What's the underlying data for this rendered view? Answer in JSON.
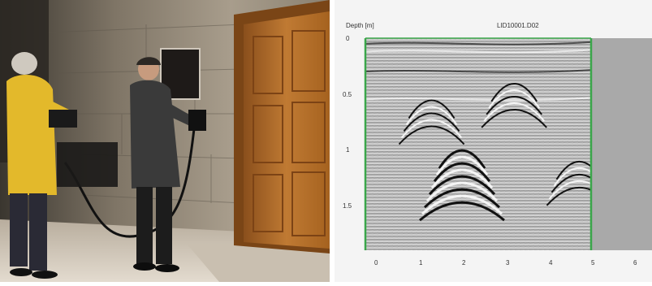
{
  "photo": {
    "scene": "",
    "colors": {
      "wall": "#8f8474",
      "door": "#b06a2a",
      "floor": "#d9d0c2",
      "jacket": "#e3b92b"
    }
  },
  "radargram": {
    "filename": "LID10001.D02",
    "ylabel": "Depth [m]",
    "y_ticks": [
      "0",
      "0.5",
      "1",
      "1.5"
    ],
    "x_ticks": [
      "0",
      "1",
      "2",
      "3",
      "4",
      "5",
      "6"
    ],
    "colors": {
      "frame": "#3aa64a",
      "background": "#a9a9a9"
    }
  },
  "chart_data": {
    "type": "heatmap",
    "title": "LID10001.D02",
    "xlabel": "",
    "ylabel": "Depth [m]",
    "xlim": [
      0,
      6
    ],
    "ylim": [
      0,
      1.9
    ],
    "y_ticks": [
      0,
      0.5,
      1,
      1.5
    ],
    "x_ticks": [
      0,
      1,
      2,
      3,
      4,
      5,
      6
    ],
    "data_extent_x": [
      0,
      5
    ],
    "hyperbola_apexes": [
      {
        "x": 2.0,
        "depth": 0.95
      },
      {
        "x": 1.3,
        "depth": 0.5
      },
      {
        "x": 4.7,
        "depth": 1.05
      },
      {
        "x": 3.2,
        "depth": 0.35
      }
    ]
  }
}
